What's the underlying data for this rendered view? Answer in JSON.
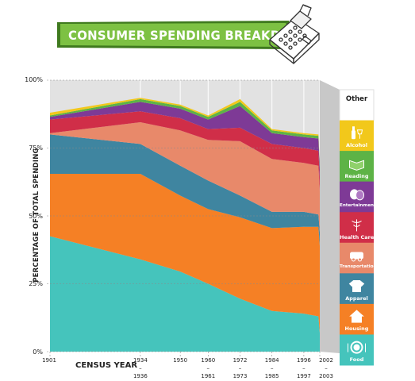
{
  "title": "CONSUMER SPENDING BREAKDOWN",
  "colors": {
    "banner": "#7dc143",
    "banner_dark": "#3f7a1e",
    "background_band": "#e2e2e2",
    "grid": "#ffffff"
  },
  "chart_data": {
    "type": "area",
    "stacked": true,
    "x_positions": [
      1901,
      1935,
      1950,
      1960.5,
      1972.5,
      1984.5,
      1996.5,
      2002,
      2002.5
    ],
    "xticks": [
      {
        "value": 1901,
        "lines": [
          "1901"
        ]
      },
      {
        "value": 1935,
        "lines": [
          "1934",
          "–",
          "1936"
        ]
      },
      {
        "value": 1950,
        "lines": [
          "1950"
        ]
      },
      {
        "value": 1960.5,
        "lines": [
          "1960",
          "–",
          "1961"
        ]
      },
      {
        "value": 1972.5,
        "lines": [
          "1972",
          "–",
          "1973"
        ]
      },
      {
        "value": 1984.5,
        "lines": [
          "1984",
          "–",
          "1985"
        ]
      },
      {
        "value": 1996.5,
        "lines": [
          "1996",
          "–",
          "1997"
        ]
      },
      {
        "value": 2002.5,
        "lines": [
          "2002",
          "–",
          "2003"
        ]
      }
    ],
    "xlabel": "CENSUS YEAR",
    "ylabel": "PERCENTAGE OF TOTAL SPENDING",
    "ylim": [
      0,
      100
    ],
    "yticks": [
      "0%",
      "25%",
      "50%",
      "75%",
      "100%"
    ],
    "grid": true,
    "series": [
      {
        "name": "Food",
        "color": "#45c4bc",
        "values": [
          42.5,
          34,
          29.5,
          25,
          19.5,
          15,
          14,
          13,
          7
        ]
      },
      {
        "name": "Housing",
        "color": "#f58025",
        "values": [
          23,
          31.5,
          28,
          27.5,
          30,
          30.5,
          32,
          33,
          32
        ]
      },
      {
        "name": "Apparel",
        "color": "#3f85a0",
        "values": [
          14.5,
          11,
          11,
          10.5,
          8,
          6,
          5.5,
          4.5,
          5
        ]
      },
      {
        "name": "Transportation",
        "color": "#e8896a",
        "values": [
          0.5,
          8,
          13,
          15,
          20,
          19.5,
          18,
          18,
          15
        ]
      },
      {
        "name": "Health Care",
        "color": "#d02e48",
        "values": [
          5,
          4,
          4.5,
          4,
          5,
          5.5,
          5.5,
          5.5,
          5
        ]
      },
      {
        "name": "Entertainment",
        "color": "#7e3a96",
        "values": [
          1,
          3.5,
          3.5,
          3.5,
          8,
          4,
          4,
          4.5,
          4
        ]
      },
      {
        "name": "Reading",
        "color": "#5db346",
        "values": [
          0.5,
          1,
          1,
          1,
          1.5,
          1,
          1,
          1,
          1
        ]
      },
      {
        "name": "Alcohol",
        "color": "#f2c81b",
        "values": [
          1,
          0.5,
          0.5,
          0.5,
          1,
          0.5,
          0.5,
          0.5,
          0.5
        ]
      },
      {
        "name": "Other",
        "color": "#d9d9d9",
        "values": [
          12,
          6.5,
          9,
          13,
          7,
          18,
          19.5,
          20,
          30.5
        ]
      }
    ],
    "legend": [
      {
        "label": "Other",
        "icon": "none"
      },
      {
        "label": "Alcohol",
        "icon": "bottles-icon"
      },
      {
        "label": "Reading",
        "icon": "book-icon"
      },
      {
        "label": "Entertainment",
        "icon": "masks-icon"
      },
      {
        "label": "Health Care",
        "icon": "caduceus-icon"
      },
      {
        "label": "Transportation",
        "icon": "car-icon"
      },
      {
        "label": "Apparel",
        "icon": "shirt-icon"
      },
      {
        "label": "Housing",
        "icon": "house-icon"
      },
      {
        "label": "Food",
        "icon": "plate-icon"
      }
    ],
    "legend_placement": "right"
  }
}
